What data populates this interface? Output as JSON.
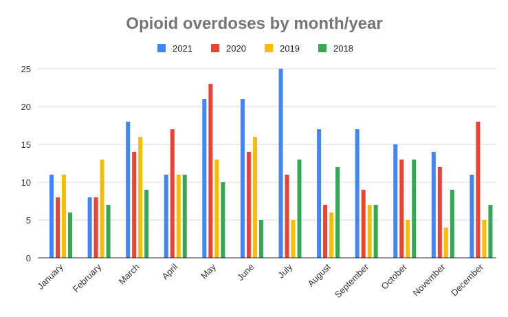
{
  "chart_data": {
    "type": "bar",
    "title": "Opioid overdoses by month/year",
    "xlabel": "",
    "ylabel": "",
    "categories": [
      "January",
      "February",
      "March",
      "April",
      "May",
      "June",
      "July",
      "August",
      "September",
      "October",
      "November",
      "December"
    ],
    "series": [
      {
        "name": "2021",
        "color": "#4285F4",
        "values": [
          11,
          8,
          18,
          11,
          21,
          21,
          25,
          17,
          17,
          15,
          14,
          11
        ]
      },
      {
        "name": "2020",
        "color": "#EA4335",
        "values": [
          8,
          8,
          14,
          17,
          23,
          14,
          11,
          7,
          9,
          13,
          12,
          18
        ]
      },
      {
        "name": "2019",
        "color": "#FBBC04",
        "values": [
          11,
          13,
          16,
          11,
          13,
          16,
          5,
          6,
          7,
          5,
          4,
          5
        ]
      },
      {
        "name": "2018",
        "color": "#34A853",
        "values": [
          6,
          7,
          9,
          11,
          10,
          5,
          13,
          12,
          7,
          13,
          9,
          7
        ]
      }
    ],
    "ylim": [
      0,
      25
    ],
    "yticks": [
      0,
      5,
      10,
      15,
      20,
      25
    ],
    "grid": true,
    "legend_position": "top"
  }
}
